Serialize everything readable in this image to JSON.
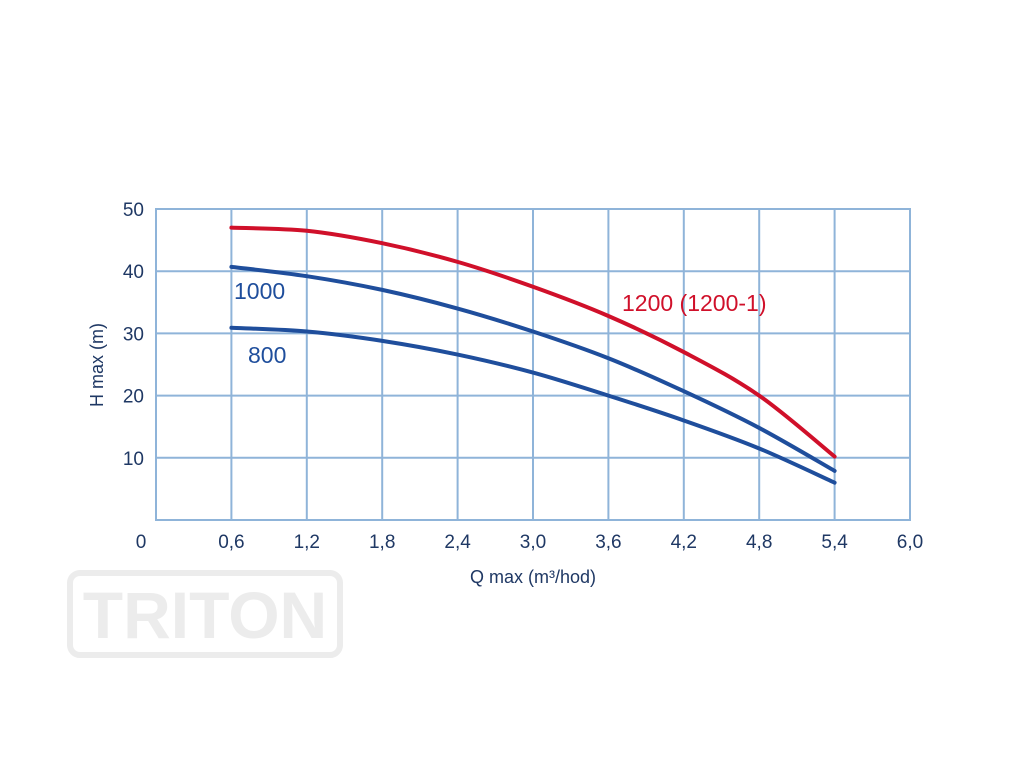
{
  "colors": {
    "grid": "#8fb4d9",
    "text": "#1f3864",
    "blue_series": "#1f4e9c",
    "red_series": "#d0102a",
    "watermark": "#ececec"
  },
  "watermark": {
    "text": "TRITON"
  },
  "chart_data": {
    "type": "line",
    "title": "",
    "xlabel": "Q max (m³/hod)",
    "ylabel": "H max (m)",
    "xlim": [
      0,
      6.0
    ],
    "ylim": [
      0,
      50
    ],
    "grid": true,
    "x_ticks": [
      0,
      0.6,
      1.2,
      1.8,
      2.4,
      3.0,
      3.6,
      4.2,
      4.8,
      5.4,
      6.0
    ],
    "x_tick_labels": [
      "0",
      "0,6",
      "1,2",
      "1,8",
      "2,4",
      "3,0",
      "3,6",
      "4,2",
      "4,8",
      "5,4",
      "6,0"
    ],
    "y_ticks": [
      10,
      20,
      30,
      40,
      50
    ],
    "y_tick_labels": [
      "10",
      "20",
      "30",
      "40",
      "50"
    ],
    "series": [
      {
        "name": "1200 (1200-1)",
        "color_key": "red_series",
        "x": [
          0.6,
          1.2,
          1.8,
          2.4,
          3.0,
          3.6,
          4.2,
          4.8,
          5.4
        ],
        "y": [
          47,
          46.5,
          44.5,
          41.5,
          37.5,
          32.8,
          27,
          20,
          10.2
        ]
      },
      {
        "name": "1000",
        "color_key": "blue_series",
        "x": [
          0.6,
          1.2,
          1.8,
          2.4,
          3.0,
          3.6,
          4.2,
          4.8,
          5.4
        ],
        "y": [
          40.7,
          39.2,
          37,
          34,
          30.3,
          26,
          20.7,
          14.8,
          7.9
        ]
      },
      {
        "name": "800",
        "color_key": "blue_series",
        "x": [
          0.6,
          1.2,
          1.8,
          2.4,
          3.0,
          3.6,
          4.2,
          4.8,
          5.4
        ],
        "y": [
          30.9,
          30.3,
          28.8,
          26.6,
          23.7,
          20,
          16,
          11.5,
          6
        ]
      }
    ]
  }
}
